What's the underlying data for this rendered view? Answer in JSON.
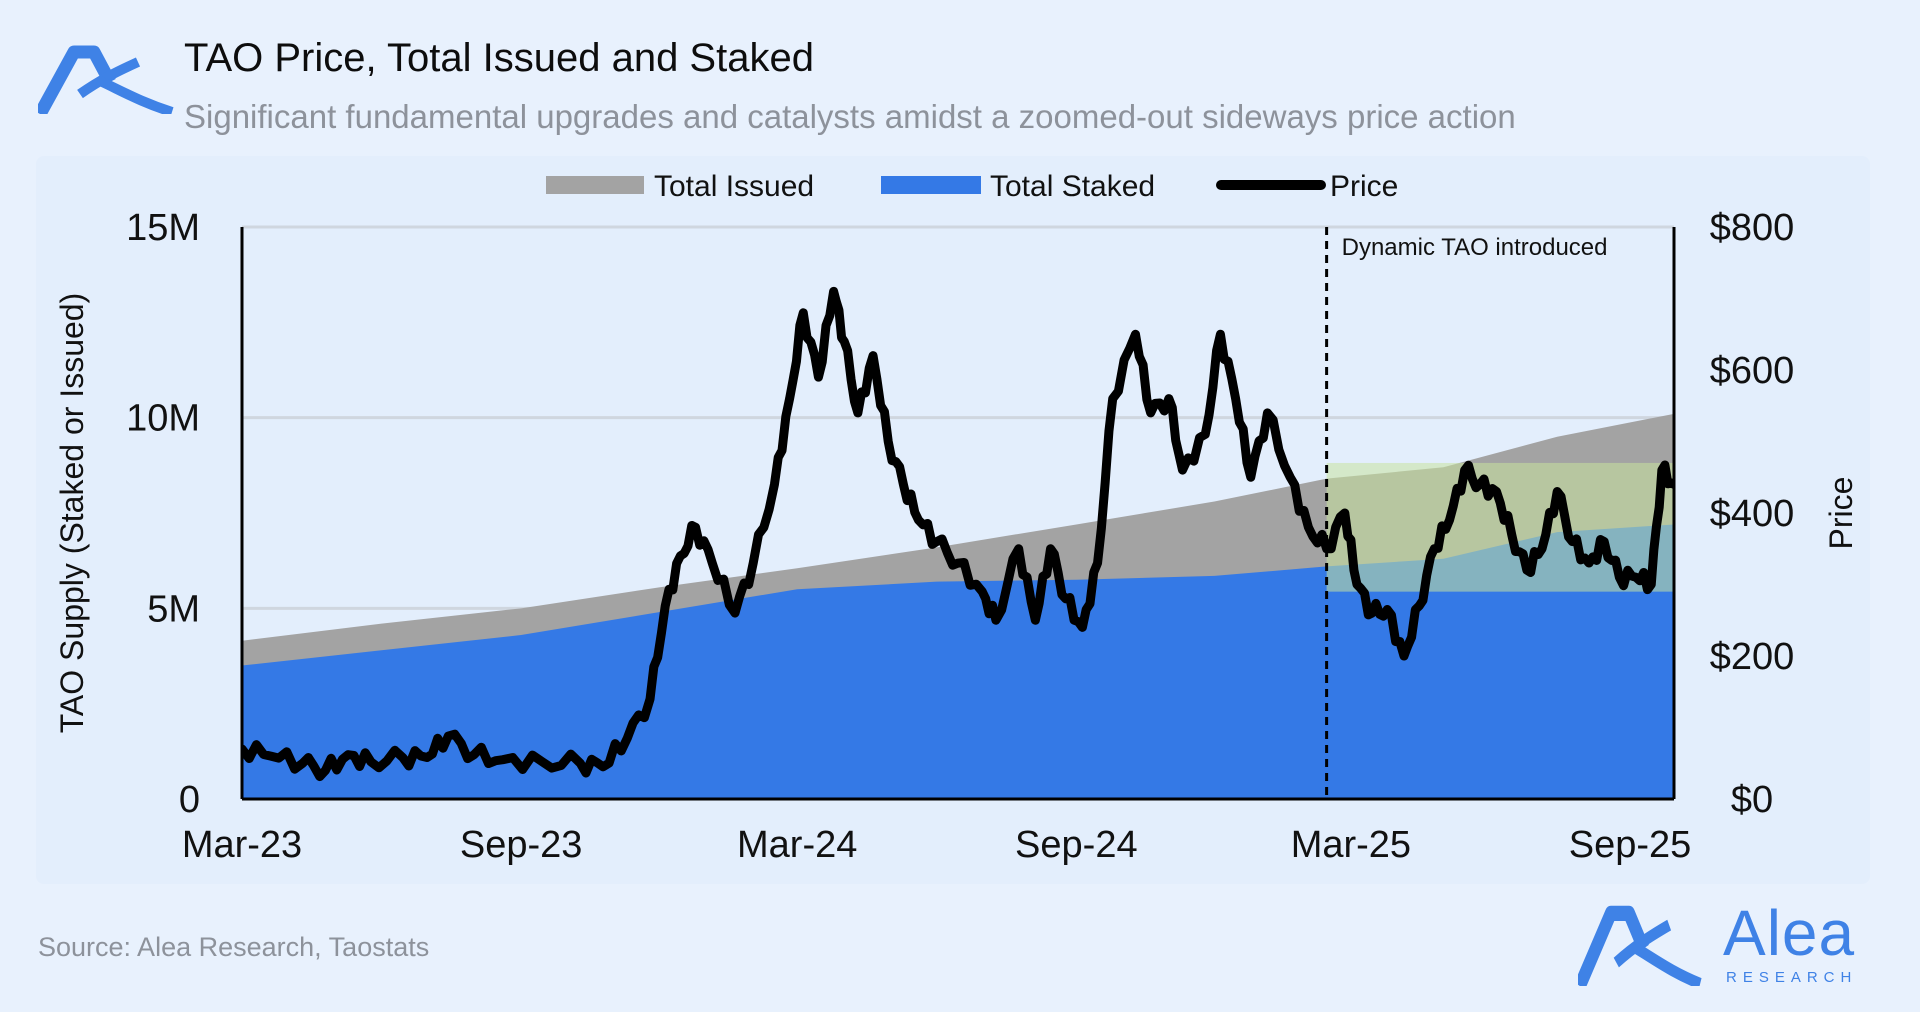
{
  "header": {
    "title": "TAO Price, Total Issued and Staked",
    "subtitle": "Significant fundamental upgrades and catalysts amidst a zoomed-out sideways price action"
  },
  "footer": {
    "source": "Source: Alea Research, Taostats",
    "brand_name": "Alea",
    "brand_sub": "RESEARCH"
  },
  "colors": {
    "issued": "#a3a3a3",
    "staked": "#3479e6",
    "price": "#000000",
    "highlight": "#c8e39e",
    "brand": "#3f82e6"
  },
  "chart_data": {
    "type": "area+line",
    "title": "TAO Price, Total Issued and Staked",
    "legend": [
      "Total Issued",
      "Total Staked",
      "Price"
    ],
    "legend_position": "top-center",
    "x_start": "2023-03-01",
    "x_end": "2025-09-30",
    "x_ticks": [
      {
        "label": "Mar-23",
        "date": "2023-03-01"
      },
      {
        "label": "Sep-23",
        "date": "2023-09-01"
      },
      {
        "label": "Mar-24",
        "date": "2024-03-01"
      },
      {
        "label": "Sep-24",
        "date": "2024-09-01"
      },
      {
        "label": "Mar-25",
        "date": "2025-03-01"
      },
      {
        "label": "Sep-25",
        "date": "2025-09-01"
      }
    ],
    "ylabel_left": "TAO Supply (Staked or Issued)",
    "ylabel_right": "Price",
    "ylim_left": [
      0,
      15000000
    ],
    "ylim_right": [
      0,
      800
    ],
    "y_ticks_left": [
      {
        "label": "0",
        "value": 0
      },
      {
        "label": "5M",
        "value": 5000000
      },
      {
        "label": "10M",
        "value": 10000000
      },
      {
        "label": "15M",
        "value": 15000000
      }
    ],
    "y_ticks_right": [
      {
        "label": "$0",
        "value": 0
      },
      {
        "label": "$200",
        "value": 200
      },
      {
        "label": "$400",
        "value": 400
      },
      {
        "label": "$600",
        "value": 600
      },
      {
        "label": "$800",
        "value": 800
      }
    ],
    "annotation": {
      "date": "2025-02-13",
      "text": "Dynamic TAO introduced"
    },
    "highlight_band": {
      "x_from": "2025-02-13",
      "x_to": "2025-09-30",
      "price_from": 290,
      "price_to": 470
    },
    "series": [
      {
        "name": "Total Issued",
        "points": [
          [
            "2023-03-01",
            4.15
          ],
          [
            "2023-06-01",
            4.6
          ],
          [
            "2023-09-01",
            5.0
          ],
          [
            "2023-12-01",
            5.55
          ],
          [
            "2024-03-01",
            6.05
          ],
          [
            "2024-06-01",
            6.6
          ],
          [
            "2024-09-01",
            7.2
          ],
          [
            "2024-12-01",
            7.8
          ],
          [
            "2025-02-13",
            8.4
          ],
          [
            "2025-05-01",
            8.7
          ],
          [
            "2025-07-15",
            9.5
          ],
          [
            "2025-09-30",
            10.1
          ]
        ]
      },
      {
        "name": "Total Staked",
        "points": [
          [
            "2023-03-01",
            3.5
          ],
          [
            "2023-06-01",
            3.9
          ],
          [
            "2023-09-01",
            4.3
          ],
          [
            "2023-12-01",
            4.9
          ],
          [
            "2024-03-01",
            5.5
          ],
          [
            "2024-06-01",
            5.7
          ],
          [
            "2024-09-01",
            5.75
          ],
          [
            "2024-12-01",
            5.85
          ],
          [
            "2025-02-13",
            6.1
          ],
          [
            "2025-05-01",
            6.3
          ],
          [
            "2025-07-15",
            7.0
          ],
          [
            "2025-09-30",
            7.2
          ]
        ]
      },
      {
        "name": "Price",
        "points": [
          [
            "2023-03-01",
            70
          ],
          [
            "2023-03-20",
            60
          ],
          [
            "2023-04-10",
            50
          ],
          [
            "2023-04-25",
            40
          ],
          [
            "2023-05-10",
            62
          ],
          [
            "2023-05-25",
            52
          ],
          [
            "2023-06-15",
            58
          ],
          [
            "2023-07-01",
            58
          ],
          [
            "2023-07-15",
            88
          ],
          [
            "2023-08-01",
            62
          ],
          [
            "2023-08-20",
            55
          ],
          [
            "2023-09-15",
            52
          ],
          [
            "2023-10-10",
            50
          ],
          [
            "2023-10-25",
            45
          ],
          [
            "2023-11-10",
            85
          ],
          [
            "2023-11-25",
            140
          ],
          [
            "2023-12-05",
            270
          ],
          [
            "2023-12-15",
            340
          ],
          [
            "2023-12-25",
            380
          ],
          [
            "2024-01-05",
            330
          ],
          [
            "2024-01-20",
            260
          ],
          [
            "2024-02-01",
            330
          ],
          [
            "2024-02-15",
            440
          ],
          [
            "2024-02-25",
            560
          ],
          [
            "2024-03-05",
            680
          ],
          [
            "2024-03-15",
            590
          ],
          [
            "2024-03-25",
            710
          ],
          [
            "2024-04-01",
            640
          ],
          [
            "2024-04-10",
            540
          ],
          [
            "2024-04-20",
            620
          ],
          [
            "2024-04-30",
            500
          ],
          [
            "2024-05-10",
            440
          ],
          [
            "2024-05-20",
            390
          ],
          [
            "2024-06-01",
            360
          ],
          [
            "2024-06-15",
            330
          ],
          [
            "2024-07-01",
            290
          ],
          [
            "2024-07-10",
            250
          ],
          [
            "2024-07-25",
            350
          ],
          [
            "2024-08-05",
            250
          ],
          [
            "2024-08-15",
            350
          ],
          [
            "2024-08-25",
            280
          ],
          [
            "2024-09-05",
            240
          ],
          [
            "2024-09-15",
            330
          ],
          [
            "2024-09-25",
            560
          ],
          [
            "2024-10-10",
            650
          ],
          [
            "2024-10-20",
            540
          ],
          [
            "2024-11-01",
            560
          ],
          [
            "2024-11-10",
            460
          ],
          [
            "2024-11-25",
            510
          ],
          [
            "2024-12-05",
            650
          ],
          [
            "2024-12-15",
            560
          ],
          [
            "2024-12-25",
            450
          ],
          [
            "2025-01-05",
            540
          ],
          [
            "2025-01-20",
            450
          ],
          [
            "2025-02-01",
            380
          ],
          [
            "2025-02-13",
            350
          ],
          [
            "2025-02-25",
            400
          ],
          [
            "2025-03-05",
            300
          ],
          [
            "2025-03-15",
            260
          ],
          [
            "2025-03-25",
            265
          ],
          [
            "2025-04-05",
            200
          ],
          [
            "2025-04-15",
            270
          ],
          [
            "2025-04-25",
            350
          ],
          [
            "2025-05-05",
            390
          ],
          [
            "2025-05-15",
            460
          ],
          [
            "2025-05-25",
            440
          ],
          [
            "2025-06-05",
            430
          ],
          [
            "2025-06-15",
            370
          ],
          [
            "2025-06-25",
            320
          ],
          [
            "2025-07-05",
            350
          ],
          [
            "2025-07-15",
            430
          ],
          [
            "2025-07-25",
            360
          ],
          [
            "2025-08-05",
            330
          ],
          [
            "2025-08-15",
            360
          ],
          [
            "2025-08-25",
            310
          ],
          [
            "2025-09-05",
            310
          ],
          [
            "2025-09-15",
            300
          ],
          [
            "2025-09-22",
            460
          ],
          [
            "2025-09-30",
            440
          ]
        ]
      }
    ],
    "units": {
      "Total Issued": "millions TAO",
      "Total Staked": "millions TAO",
      "Price": "USD"
    }
  }
}
